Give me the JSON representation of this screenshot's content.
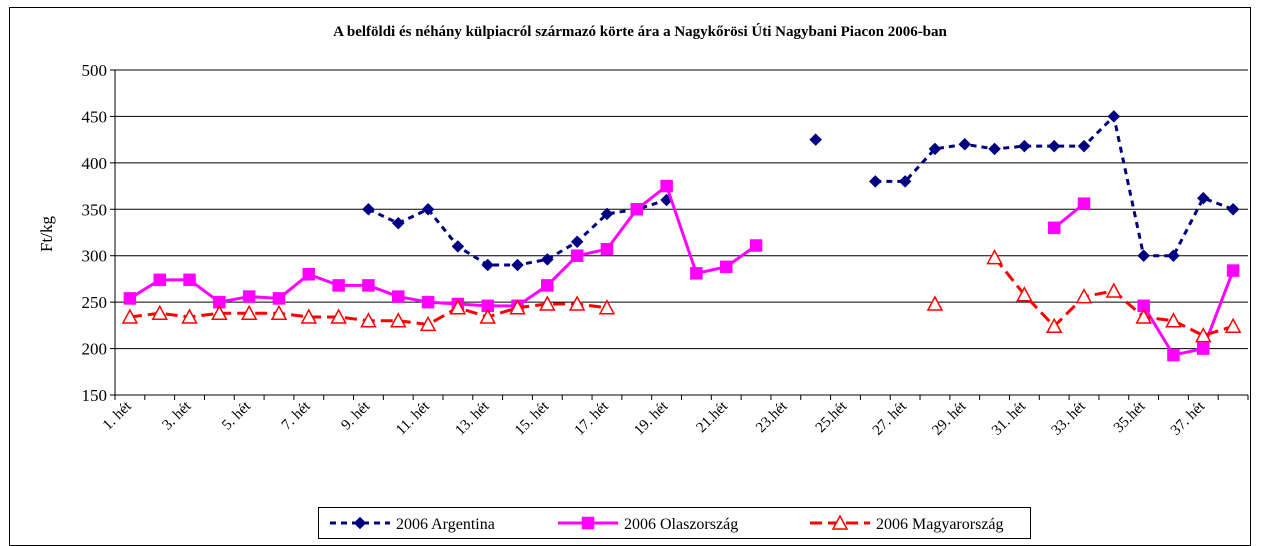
{
  "chart_data": {
    "type": "line",
    "title": "A belföldi és néhány külpiacról származó körte ára a Nagykőrösi Úti Nagybani Piacon 2006-ban",
    "ylabel": "Ft/kg",
    "categories": [
      "1. hét",
      null,
      "3. hét",
      null,
      "5. hét",
      null,
      "7. hét",
      null,
      "9. hét",
      null,
      "11. hét",
      null,
      "13. hét",
      null,
      "15. hét",
      null,
      "17. hét",
      null,
      "19. hét",
      null,
      "21.hét",
      null,
      "23.hét",
      null,
      "25.hét",
      null,
      "27. hét",
      null,
      "29. hét",
      null,
      "31. hét",
      null,
      "33. hét",
      null,
      "35.hét",
      null,
      "37. hét",
      null
    ],
    "ylim": [
      150,
      500
    ],
    "yticks": [
      150,
      200,
      250,
      300,
      350,
      400,
      450,
      500
    ],
    "grid": true,
    "legend": "bottom",
    "series": [
      {
        "name": "2006 Argentina",
        "color": "#000080",
        "marker": "diamond",
        "dash": "6,5",
        "values": [
          null,
          null,
          null,
          null,
          null,
          null,
          null,
          null,
          350,
          335,
          350,
          310,
          290,
          290,
          296,
          315,
          345,
          350,
          360,
          null,
          null,
          null,
          null,
          425,
          null,
          380,
          380,
          415,
          420,
          415,
          418,
          418,
          418,
          450,
          300,
          300,
          362,
          350
        ]
      },
      {
        "name": "2006 Olaszország",
        "color": "#ff00ff",
        "marker": "square",
        "dash": "none",
        "values": [
          254,
          274,
          274,
          250,
          256,
          254,
          280,
          268,
          268,
          256,
          250,
          248,
          246,
          246,
          268,
          300,
          307,
          350,
          375,
          281,
          288,
          311,
          null,
          null,
          null,
          null,
          null,
          null,
          null,
          null,
          null,
          330,
          356,
          null,
          246,
          193,
          200,
          284
        ]
      },
      {
        "name": "2006 Magyarország",
        "color": "#ff0000",
        "marker": "triangle",
        "dash": "12,6",
        "values": [
          234,
          238,
          234,
          238,
          238,
          238,
          234,
          234,
          230,
          230,
          226,
          244,
          234,
          244,
          248,
          248,
          244,
          null,
          null,
          null,
          null,
          null,
          null,
          null,
          null,
          null,
          null,
          248,
          null,
          298,
          258,
          224,
          256,
          262,
          234,
          230,
          214,
          224
        ]
      }
    ]
  }
}
